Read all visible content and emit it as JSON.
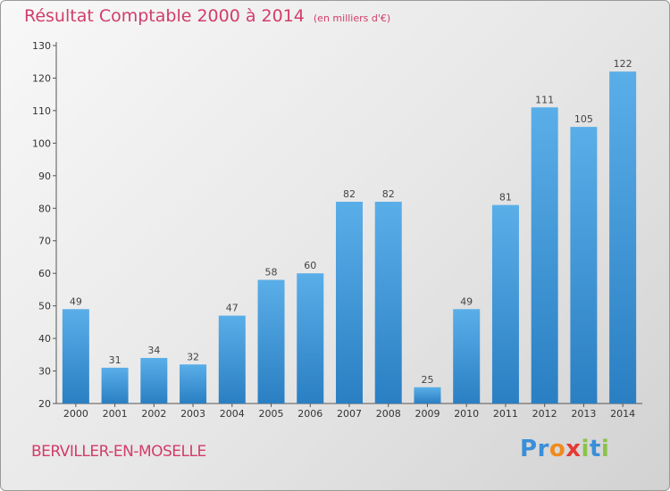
{
  "header": {
    "title": "Résultat Comptable 2000 à 2014",
    "subtitle": "(en milliers d'€)"
  },
  "footer": {
    "place": "BERVILLER-EN-MOSELLE",
    "logo_letters": [
      "P",
      "r",
      "o",
      "x",
      "i",
      "t",
      "i"
    ]
  },
  "colors": {
    "title": "#d23c6a",
    "bar_top": "#5aaee8",
    "bar_bottom": "#2a7fc3",
    "logo": [
      "#3a8fd8",
      "#3a8fd8",
      "#f08a1c",
      "#e53935",
      "#8bc34a",
      "#3a8fd8",
      "#8bc34a"
    ]
  },
  "chart_data": {
    "type": "bar",
    "title": "Résultat Comptable 2000 à 2014",
    "subtitle": "(en milliers d'€)",
    "xlabel": "",
    "ylabel": "",
    "categories": [
      "2000",
      "2001",
      "2002",
      "2003",
      "2004",
      "2005",
      "2006",
      "2007",
      "2008",
      "2009",
      "2010",
      "2011",
      "2012",
      "2013",
      "2014"
    ],
    "values": [
      49,
      31,
      34,
      32,
      47,
      58,
      60,
      82,
      82,
      25,
      49,
      81,
      111,
      105,
      122
    ],
    "ylim": [
      20,
      130
    ],
    "yticks": [
      20,
      30,
      40,
      50,
      60,
      70,
      80,
      90,
      100,
      110,
      120,
      130
    ],
    "grid": false,
    "legend": "none",
    "data_labels": true
  }
}
